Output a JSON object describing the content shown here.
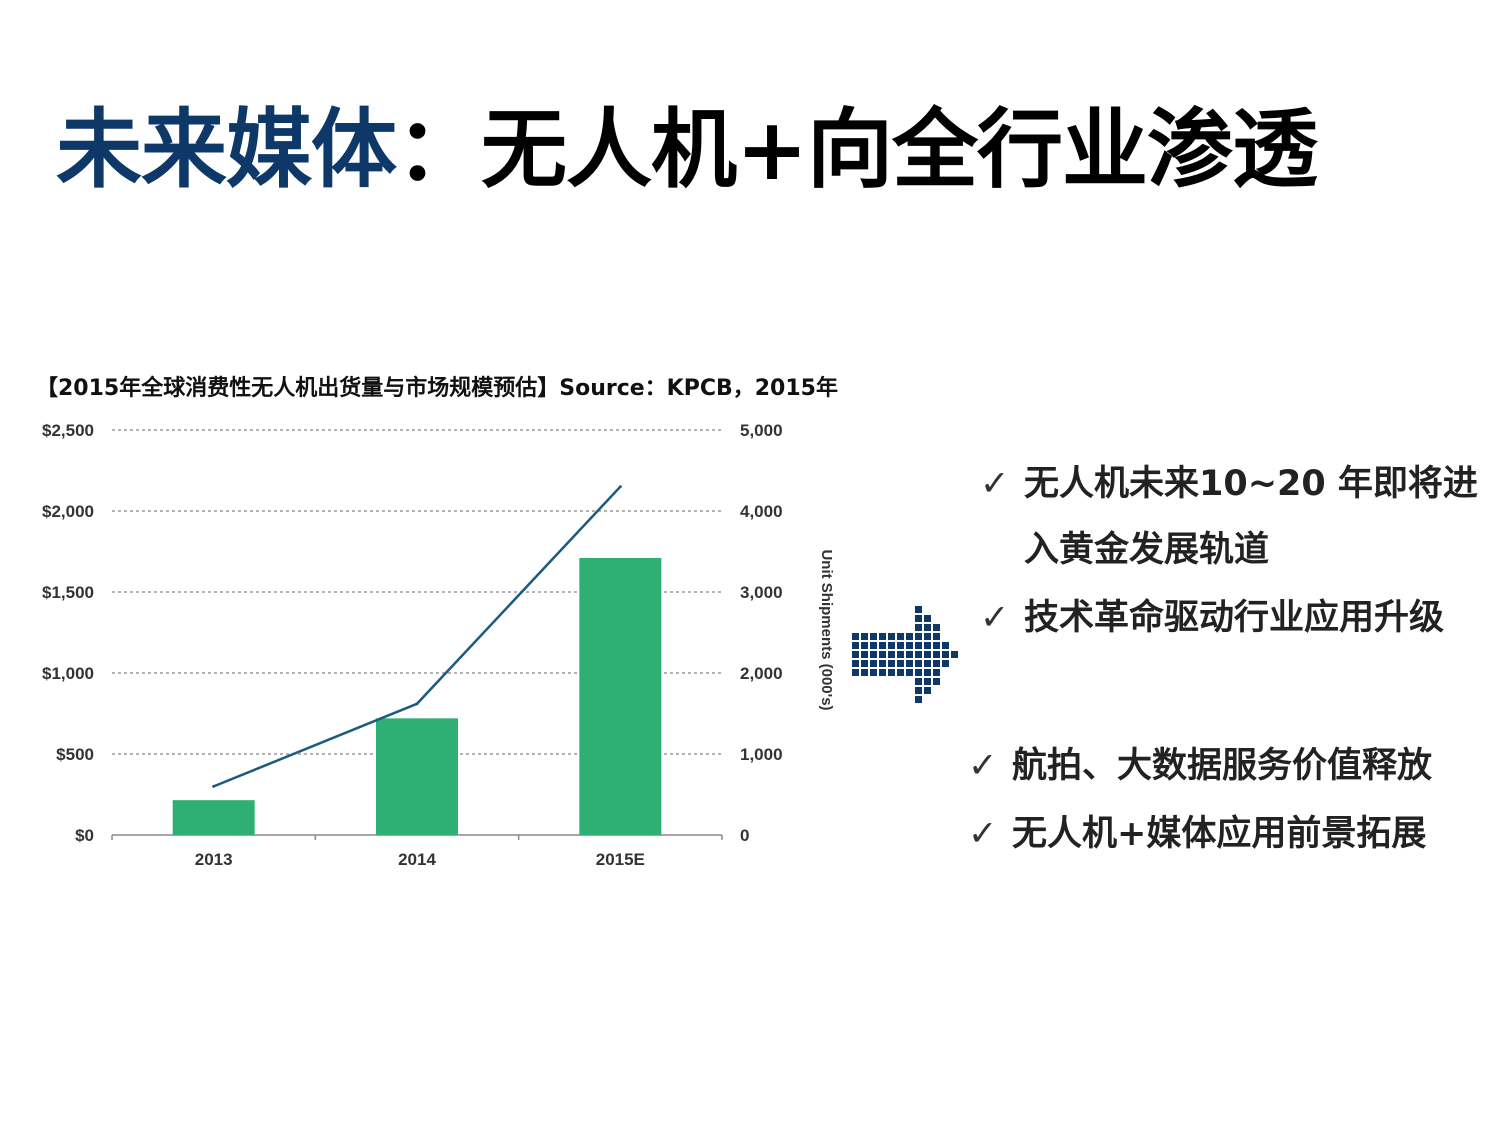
{
  "slide": {
    "title_accent": "未来媒体",
    "title_main": "：无人机+向全行业渗透"
  },
  "chart_caption": "【2015年全球消费性无人机出货量与市场规模预估】Source：KPCB，2015年",
  "chart_data": {
    "type": "bar",
    "categories": [
      "2013",
      "2014",
      "2015E"
    ],
    "series": [
      {
        "kind": "bar",
        "axis": "left",
        "values": [
          215,
          720,
          1710
        ],
        "color": "#2eaf73"
      },
      {
        "kind": "line",
        "axis": "right",
        "values": [
          600,
          1620,
          4300
        ],
        "color": "#1c5a80"
      }
    ],
    "left_axis": {
      "ylim": [
        0,
        2500
      ],
      "ticks": [
        "$0",
        "$500",
        "$1,000",
        "$1,500",
        "$2,000",
        "$2,500"
      ]
    },
    "right_axis": {
      "ylim": [
        0,
        5000
      ],
      "ticks": [
        "0",
        "1,000",
        "2,000",
        "3,000",
        "4,000",
        "5,000"
      ],
      "label": "Unit Shipments (000's)"
    },
    "grid": true,
    "grid_style": "dotted"
  },
  "bullets": [
    {
      "check": "✓",
      "lines": [
        "无人机未来10~20 年即将进",
        "入黄金发展轨道"
      ]
    },
    {
      "check": "✓",
      "lines": [
        "技术革命驱动行业应用升级"
      ]
    },
    {
      "check": "✓",
      "lines": [
        "航拍、大数据服务价值释放"
      ]
    },
    {
      "check": "✓",
      "lines": [
        "无人机+媒体应用前景拓展"
      ]
    }
  ],
  "icons": {
    "arrow": "dotted-arrow-right-icon",
    "arrow_color": "#0d3868"
  }
}
